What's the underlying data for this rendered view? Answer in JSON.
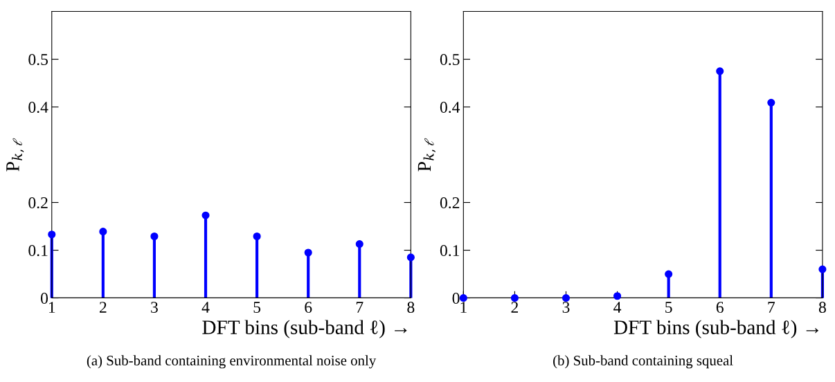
{
  "chart_data": [
    {
      "type": "lollipop",
      "x": [
        1,
        2,
        3,
        4,
        5,
        6,
        7,
        8
      ],
      "values": [
        0.133,
        0.139,
        0.129,
        0.173,
        0.129,
        0.095,
        0.113,
        0.085
      ],
      "color": "#0000ff",
      "marker": "circle",
      "xlim": [
        1,
        8
      ],
      "xticks": [
        1,
        2,
        3,
        4,
        5,
        6,
        7,
        8
      ],
      "ylim": [
        0,
        0.6
      ],
      "yticks": [
        0,
        0.1,
        0.2,
        0.4,
        0.5
      ],
      "xlabel": "DFT bins (sub-band ℓ) →",
      "ylabel": "P$_{k,ℓ}$",
      "grid": false,
      "annotations": [
        "(a) Sub-band containing environmental noise only"
      ]
    },
    {
      "type": "lollipop",
      "x": [
        1,
        2,
        3,
        4,
        5,
        6,
        7,
        8
      ],
      "values": [
        0,
        0,
        0,
        0.004,
        0.05,
        0.475,
        0.409,
        0.06
      ],
      "color": "#0000ff",
      "marker": "circle",
      "xlim": [
        1,
        8
      ],
      "xticks": [
        1,
        2,
        3,
        4,
        5,
        6,
        7,
        8
      ],
      "ylim": [
        0,
        0.6
      ],
      "yticks": [
        0,
        0.1,
        0.2,
        0.4,
        0.5
      ],
      "xlabel": "DFT bins (sub-band ℓ) →",
      "ylabel": "P$_{k,ℓ}$",
      "grid": false,
      "annotations": [
        "(b) Sub-band containing squeal"
      ]
    }
  ]
}
